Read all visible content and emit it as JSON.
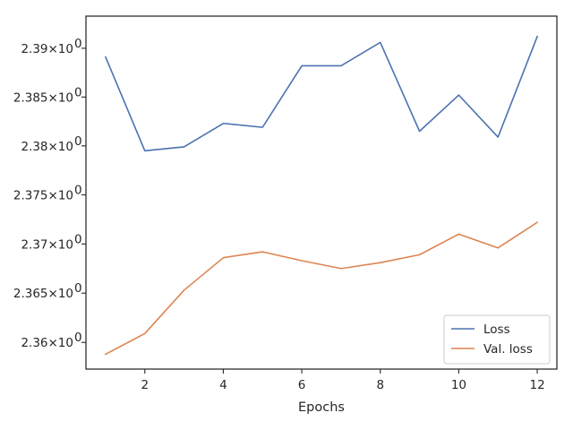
{
  "chart_data": {
    "type": "line",
    "title": "",
    "xlabel": "Epochs",
    "ylabel": "",
    "xlim": [
      0.5,
      12.5
    ],
    "ylim": [
      2.3573,
      2.3933
    ],
    "yscale": "log",
    "grid": false,
    "legend_position": "lower-right",
    "x_ticks": [
      2,
      4,
      6,
      8,
      10,
      12
    ],
    "x_tick_labels": [
      "2",
      "4",
      "6",
      "8",
      "10",
      "12"
    ],
    "y_ticks": [
      2.36,
      2.365,
      2.37,
      2.375,
      2.38,
      2.385,
      2.39
    ],
    "y_tick_mantissas": [
      "2.36",
      "2.365",
      "2.37",
      "2.375",
      "2.38",
      "2.385",
      "2.39"
    ],
    "y_tick_times": "×",
    "y_tick_base": "10",
    "y_tick_exponent": "0",
    "x": [
      1,
      2,
      3,
      4,
      5,
      6,
      7,
      8,
      9,
      10,
      11,
      12
    ],
    "series": [
      {
        "name": "Loss",
        "color": "#4c72b0",
        "values": [
          2.3891,
          2.3795,
          2.3799,
          2.3823,
          2.3819,
          2.3882,
          2.3882,
          2.3906,
          2.3815,
          2.3852,
          2.3809,
          2.3912
        ]
      },
      {
        "name": "Val. loss",
        "color": "#dd8452",
        "values": [
          2.3588,
          2.3609,
          2.3653,
          2.3686,
          2.3692,
          2.3683,
          2.3675,
          2.3681,
          2.3689,
          2.371,
          2.3696,
          2.3722
        ]
      }
    ]
  }
}
